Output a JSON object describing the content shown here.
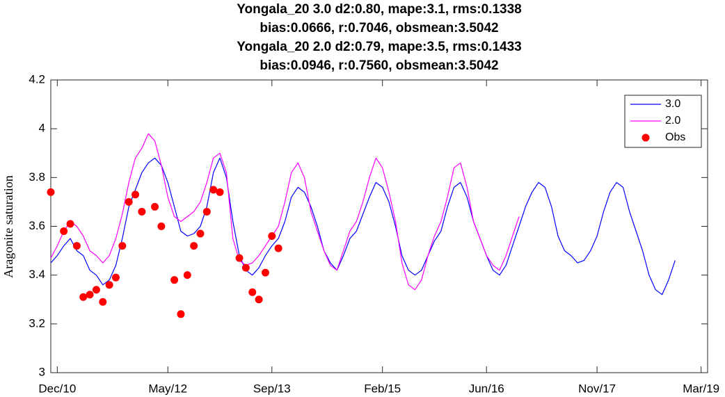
{
  "chart_data": {
    "type": "line",
    "title": [
      "Yongala_20  3.0 d2:0.80, mape:3.1, rms:0.1338",
      "bias:0.0666, r:0.7046, obsmean:3.5042",
      "Yongala_20 2.0 d2:0.79, mape:3.5, rms:0.1433",
      "bias:0.0946, r:0.7560, obsmean:3.5042"
    ],
    "ylabel": "Aragonite saturation",
    "x": [
      "2010-11",
      "2010-12",
      "2011-01",
      "2011-02",
      "2011-03",
      "2011-04",
      "2011-05",
      "2011-06",
      "2011-07",
      "2011-08",
      "2011-09",
      "2011-10",
      "2011-11",
      "2011-12",
      "2012-01",
      "2012-02",
      "2012-03",
      "2012-04",
      "2012-05",
      "2012-06",
      "2012-07",
      "2012-08",
      "2012-09",
      "2012-10",
      "2012-11",
      "2012-12",
      "2013-01",
      "2013-02",
      "2013-03",
      "2013-04",
      "2013-05",
      "2013-06",
      "2013-07",
      "2013-08",
      "2013-09",
      "2013-10",
      "2013-11",
      "2013-12",
      "2014-01",
      "2014-02",
      "2014-03",
      "2014-04",
      "2014-05",
      "2014-06",
      "2014-07",
      "2014-08",
      "2014-09",
      "2014-10",
      "2014-11",
      "2014-12",
      "2015-01",
      "2015-02",
      "2015-03",
      "2015-04",
      "2015-05",
      "2015-06",
      "2015-07",
      "2015-08",
      "2015-09",
      "2015-10",
      "2015-11",
      "2015-12",
      "2016-01",
      "2016-02",
      "2016-03",
      "2016-04",
      "2016-05",
      "2016-06",
      "2016-07",
      "2016-08",
      "2016-09",
      "2016-10",
      "2016-11",
      "2016-12",
      "2017-01",
      "2017-02",
      "2017-03",
      "2017-04",
      "2017-05",
      "2017-06",
      "2017-07",
      "2017-08",
      "2017-09",
      "2017-10",
      "2017-11",
      "2017-12",
      "2018-01",
      "2018-02",
      "2018-03",
      "2018-04",
      "2018-05",
      "2018-06",
      "2018-07",
      "2018-08",
      "2018-09",
      "2018-10",
      "2018-11"
    ],
    "xlim": [
      "2010-11",
      "2019-04"
    ],
    "xticks": [
      {
        "value": "2010-12",
        "label": "Dec/10"
      },
      {
        "value": "2012-05",
        "label": "May/12"
      },
      {
        "value": "2013-09",
        "label": "Sep/13"
      },
      {
        "value": "2015-02",
        "label": "Feb/15"
      },
      {
        "value": "2016-06",
        "label": "Jun/16"
      },
      {
        "value": "2017-11",
        "label": "Nov/17"
      },
      {
        "value": "2019-03",
        "label": "Mar/19"
      }
    ],
    "ylim": [
      3,
      4.2
    ],
    "yticks": [
      3,
      3.2,
      3.4,
      3.6,
      3.8,
      4,
      4.2
    ],
    "legend": "northeast",
    "series": [
      {
        "name": "3.0",
        "color": "#0000ff",
        "mark": "line",
        "values": [
          3.45,
          3.48,
          3.52,
          3.55,
          3.5,
          3.48,
          3.42,
          3.4,
          3.36,
          3.38,
          3.44,
          3.55,
          3.68,
          3.75,
          3.82,
          3.86,
          3.88,
          3.85,
          3.78,
          3.68,
          3.58,
          3.56,
          3.57,
          3.6,
          3.68,
          3.82,
          3.88,
          3.8,
          3.62,
          3.48,
          3.42,
          3.4,
          3.43,
          3.48,
          3.52,
          3.55,
          3.62,
          3.72,
          3.76,
          3.74,
          3.68,
          3.6,
          3.5,
          3.45,
          3.42,
          3.48,
          3.55,
          3.58,
          3.65,
          3.72,
          3.78,
          3.76,
          3.7,
          3.6,
          3.48,
          3.42,
          3.4,
          3.42,
          3.48,
          3.54,
          3.58,
          3.68,
          3.76,
          3.78,
          3.72,
          3.62,
          3.55,
          3.48,
          3.42,
          3.4,
          3.44,
          3.52,
          3.6,
          3.68,
          3.74,
          3.78,
          3.76,
          3.68,
          3.56,
          3.5,
          3.48,
          3.45,
          3.46,
          3.5,
          3.56,
          3.66,
          3.74,
          3.78,
          3.76,
          3.66,
          3.58,
          3.5,
          3.4,
          3.34,
          3.32,
          3.38,
          3.46
        ]
      },
      {
        "name": "2.0",
        "color": "#ff00ff",
        "mark": "line",
        "values": [
          3.47,
          3.52,
          3.58,
          3.62,
          3.6,
          3.56,
          3.5,
          3.48,
          3.45,
          3.48,
          3.55,
          3.65,
          3.78,
          3.88,
          3.92,
          3.98,
          3.95,
          3.85,
          3.72,
          3.64,
          3.62,
          3.64,
          3.66,
          3.7,
          3.78,
          3.88,
          3.9,
          3.82,
          3.55,
          3.46,
          3.44,
          3.45,
          3.48,
          3.52,
          3.56,
          3.6,
          3.7,
          3.82,
          3.86,
          3.8,
          3.66,
          3.58,
          3.5,
          3.44,
          3.42,
          3.5,
          3.58,
          3.62,
          3.7,
          3.8,
          3.88,
          3.84,
          3.74,
          3.62,
          3.45,
          3.36,
          3.34,
          3.38,
          3.48,
          3.56,
          3.62,
          3.72,
          3.84,
          3.86,
          3.76,
          3.62,
          3.55,
          3.48,
          3.44,
          3.42,
          3.48,
          3.56,
          3.64,
          null,
          null,
          null,
          null,
          null,
          null,
          null,
          null,
          null,
          null,
          null,
          null,
          null,
          null,
          null,
          null,
          null,
          null,
          null,
          null,
          null,
          null,
          null,
          null
        ]
      },
      {
        "name": "Obs",
        "color": "#ff0000",
        "mark": "dot",
        "x": [
          "2010-11",
          "2011-01",
          "2011-02",
          "2011-03",
          "2011-04",
          "2011-05",
          "2011-06",
          "2011-07",
          "2011-08",
          "2011-09",
          "2011-10",
          "2011-11",
          "2011-12",
          "2012-01",
          "2012-03",
          "2012-04",
          "2012-06",
          "2012-07",
          "2012-08",
          "2012-09",
          "2012-10",
          "2012-11",
          "2012-12",
          "2013-01",
          "2013-04",
          "2013-05",
          "2013-06",
          "2013-07",
          "2013-08",
          "2013-09",
          "2013-10"
        ],
        "values": [
          3.74,
          3.58,
          3.61,
          3.52,
          3.31,
          3.32,
          3.34,
          3.29,
          3.36,
          3.39,
          3.52,
          3.7,
          3.73,
          3.66,
          3.68,
          3.6,
          3.38,
          3.24,
          3.4,
          3.52,
          3.57,
          3.66,
          3.75,
          3.74,
          3.47,
          3.43,
          3.33,
          3.3,
          3.41,
          3.56,
          3.51
        ]
      }
    ]
  }
}
